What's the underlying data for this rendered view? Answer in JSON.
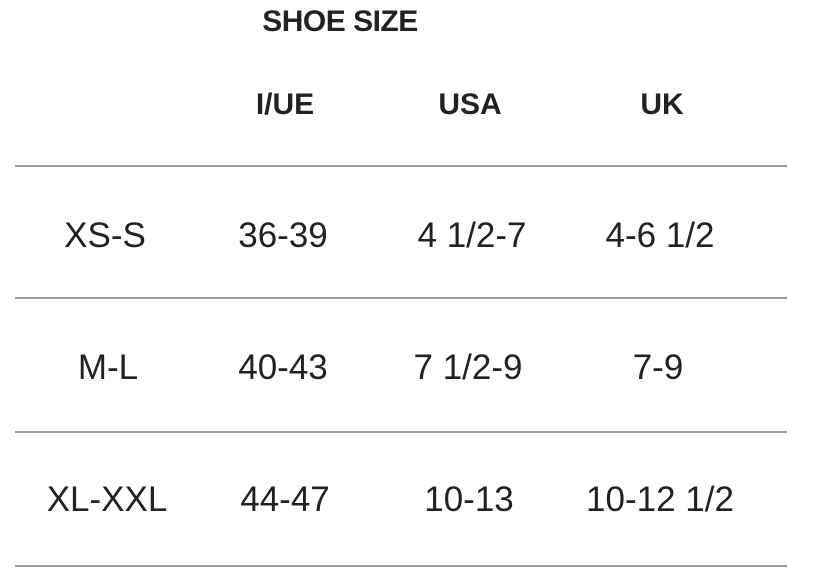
{
  "title": "SHOE SIZE",
  "columns": [
    "I/UE",
    "USA",
    "UK"
  ],
  "rows": [
    {
      "size": "XS-S",
      "values": [
        "36-39",
        "4 1/2-7",
        "4-6 1/2"
      ]
    },
    {
      "size": "M-L",
      "values": [
        "40-43",
        "7 1/2-9",
        "7-9"
      ]
    },
    {
      "size": "XL-XXL",
      "values": [
        "44-47",
        "10-13",
        "10-12 1/2"
      ]
    }
  ]
}
